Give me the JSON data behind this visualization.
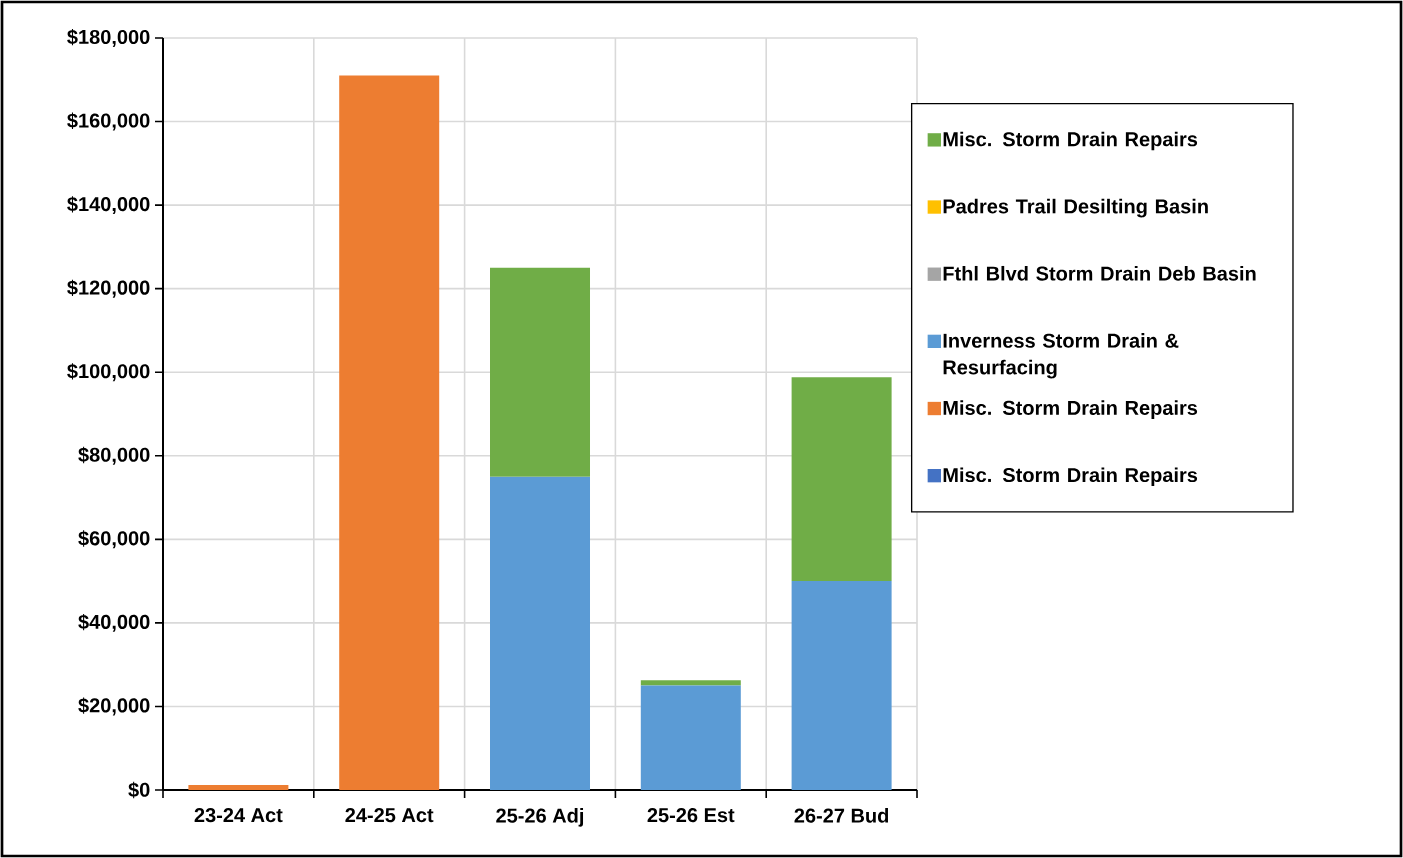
{
  "chart_data": {
    "type": "bar",
    "stacked": true,
    "categories": [
      "23-24 Act",
      "24-25 Act",
      "25-26 Adj",
      "25-26 Est",
      "26-27 Bud"
    ],
    "series": [
      {
        "name": "Misc. Storm Drain Repairs",
        "color": "#4472c4",
        "values": [
          0,
          0,
          0,
          0,
          0
        ]
      },
      {
        "name": "Misc. Storm Drain Repairs",
        "color": "#ed7d31",
        "values": [
          1200,
          171000,
          0,
          0,
          0
        ]
      },
      {
        "name": "Inverness Storm Drain & Resurfacing",
        "color": "#5b9bd5",
        "values": [
          0,
          0,
          75000,
          25000,
          50000
        ]
      },
      {
        "name": "Fthl Blvd Storm Drain Deb Basin",
        "color": "#a5a5a5",
        "values": [
          0,
          0,
          0,
          0,
          0
        ]
      },
      {
        "name": "Padres Trail Desilting Basin",
        "color": "#ffc000",
        "values": [
          0,
          0,
          0,
          0,
          0
        ]
      },
      {
        "name": "Misc. Storm Drain Repairs",
        "color": "#70ad47",
        "values": [
          0,
          0,
          50000,
          1300,
          48800
        ]
      }
    ],
    "ylim": [
      0,
      180000
    ],
    "yticks": [
      {
        "value": 0,
        "label": "$0"
      },
      {
        "value": 20000,
        "label": "$20,000"
      },
      {
        "value": 40000,
        "label": "$40,000"
      },
      {
        "value": 60000,
        "label": "$60,000"
      },
      {
        "value": 80000,
        "label": "$80,000"
      },
      {
        "value": 100000,
        "label": "$100,000"
      },
      {
        "value": 120000,
        "label": "$120,000"
      },
      {
        "value": 140000,
        "label": "$140,000"
      },
      {
        "value": 160000,
        "label": "$160,000"
      },
      {
        "value": 180000,
        "label": "$180,000"
      }
    ],
    "grid": true,
    "legend": "right"
  }
}
